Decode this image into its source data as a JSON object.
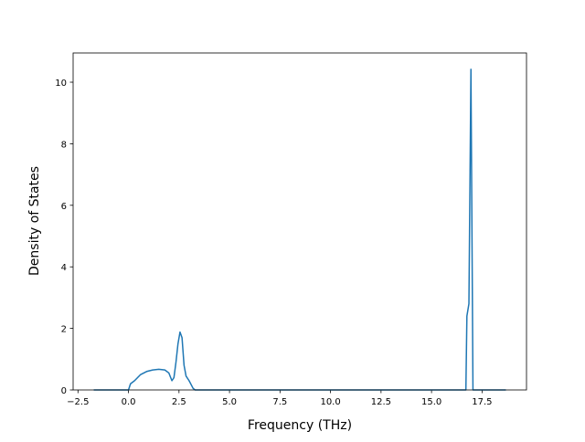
{
  "chart_data": {
    "type": "line",
    "x_label": "Frequency (THz)",
    "y_label": "Density of States",
    "series": [
      {
        "color": "#1f77b4",
        "x": [
          -1.72,
          0,
          0.1,
          0.3,
          0.6,
          0.9,
          1.2,
          1.5,
          1.8,
          2.0,
          2.15,
          2.25,
          2.35,
          2.45,
          2.55,
          2.65,
          2.75,
          2.85,
          3.0,
          3.2,
          3.3,
          16.7,
          16.75,
          16.85,
          16.95,
          17.05,
          18.68
        ],
        "values": [
          0,
          0,
          0.2,
          0.3,
          0.5,
          0.6,
          0.65,
          0.67,
          0.65,
          0.55,
          0.3,
          0.4,
          0.9,
          1.5,
          1.88,
          1.7,
          0.8,
          0.45,
          0.3,
          0.05,
          0,
          0,
          2.4,
          2.8,
          10.42,
          0,
          0
        ]
      }
    ],
    "xlim": [
      -2.74,
      19.7
    ],
    "ylim": [
      0,
      10.95
    ],
    "xticks": [
      {
        "value": -2.5,
        "label": "−2.5"
      },
      {
        "value": 0,
        "label": "0.0"
      },
      2.5,
      {
        "value": 5,
        "label": "5.0"
      },
      7.5,
      {
        "value": 10,
        "label": "10.0"
      },
      12.5,
      {
        "value": 15,
        "label": "15.0"
      },
      17.5
    ],
    "yticks": [
      0,
      2,
      4,
      6,
      8,
      10
    ]
  }
}
